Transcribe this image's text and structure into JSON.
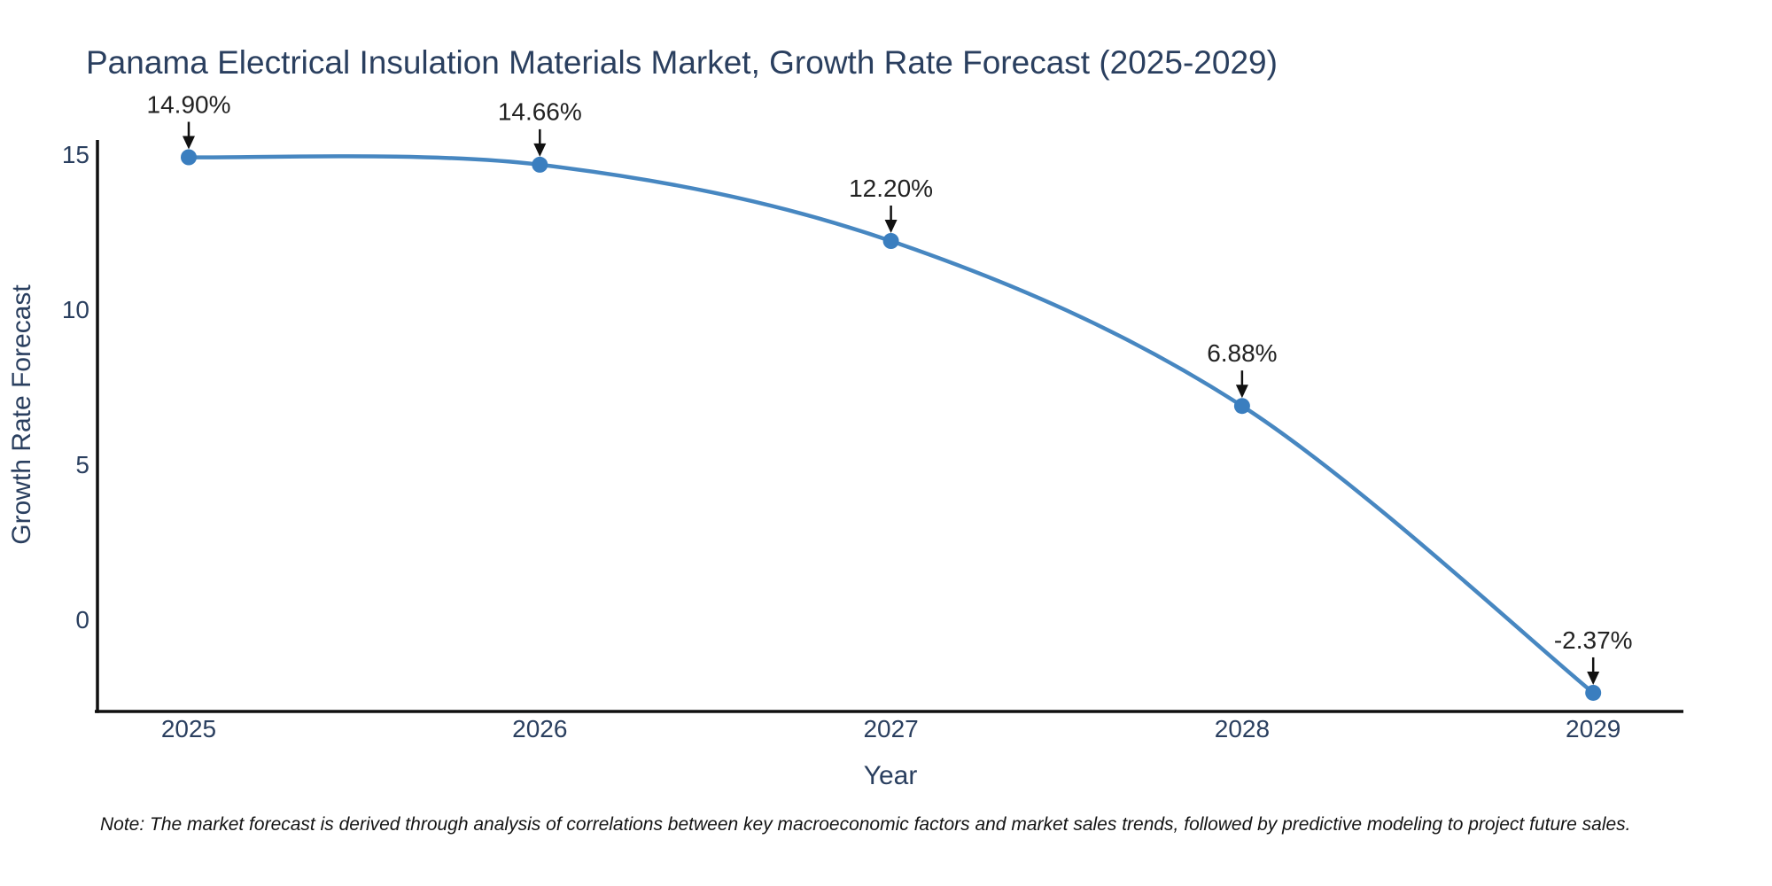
{
  "chart_data": {
    "type": "line",
    "line_shape": "spline",
    "title": "Panama Electrical Insulation Materials Market, Growth Rate Forecast (2025-2029)",
    "xlabel": "Year",
    "ylabel": "Growth Rate Forecast",
    "categories": [
      "2025",
      "2026",
      "2027",
      "2028",
      "2029"
    ],
    "series": [
      {
        "name": "Growth Rate Forecast",
        "values": [
          14.9,
          14.66,
          12.2,
          6.88,
          -2.37
        ]
      }
    ],
    "point_labels": [
      "14.90%",
      "14.66%",
      "12.20%",
      "6.88%",
      "-2.37%"
    ],
    "y_ticks": [
      15,
      10,
      5,
      0
    ],
    "ylim": [
      -2.97,
      15.46
    ],
    "grid": false,
    "legend": "none",
    "marker": "circle",
    "colors": {
      "line": "#4787c1",
      "marker": "#3a7ebf",
      "arrow": "#111111",
      "annotation_text": "#222222",
      "axis_line": "#101010",
      "tick_text": "#2a3f5f",
      "title_text": "#2a3f5f"
    }
  },
  "footnote": {
    "text": "Note: The market forecast is derived through analysis of correlations between key macroeconomic factors and market sales trends, followed by predictive modeling to project future sales."
  }
}
